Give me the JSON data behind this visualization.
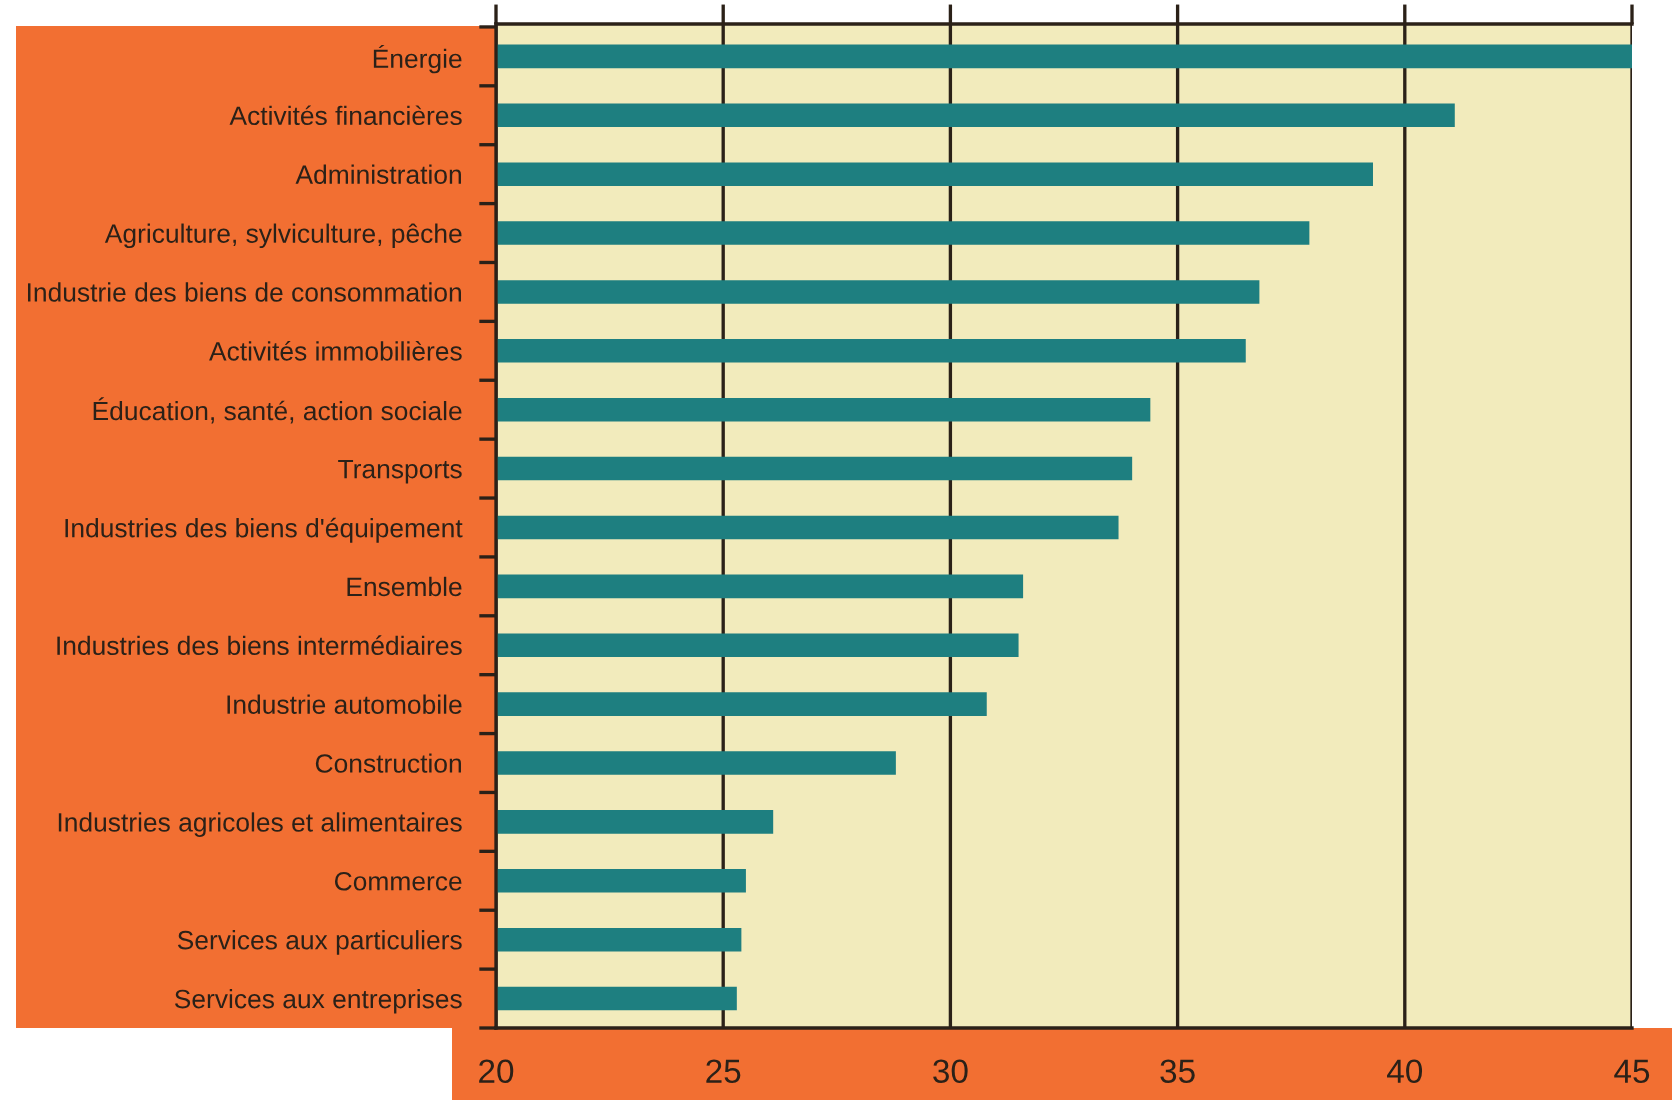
{
  "chart_data": {
    "type": "bar",
    "orientation": "horizontal",
    "categories": [
      "Énergie",
      "Activités financières",
      "Administration",
      "Agriculture, sylviculture, pêche",
      "Industrie des biens de consommation",
      "Activités immobilières",
      "Éducation, santé, action sociale",
      "Transports",
      "Industries des biens d'équipement",
      "Ensemble",
      "Industries des biens intermédiaires",
      "Industrie automobile",
      "Construction",
      "Industries agricoles et alimentaires",
      "Commerce",
      "Services aux particuliers",
      "Services aux entreprises"
    ],
    "values": [
      45,
      41.1,
      39.3,
      37.9,
      36.8,
      36.5,
      34.4,
      34.0,
      33.7,
      31.6,
      31.5,
      30.8,
      28.8,
      26.1,
      25.5,
      25.4,
      25.3
    ],
    "color": "#1e7f80",
    "xlim": [
      20,
      45
    ],
    "xticks": [
      20,
      25,
      30,
      35,
      40,
      45
    ],
    "grid": "x"
  }
}
